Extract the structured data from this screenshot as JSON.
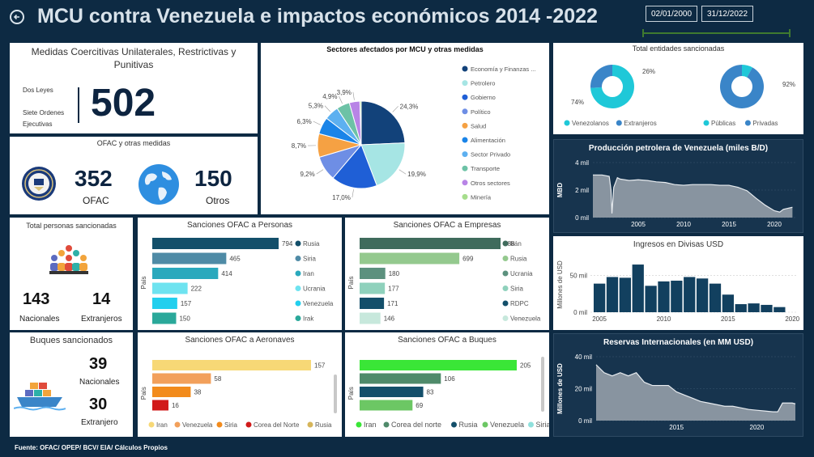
{
  "header": {
    "title": "MCU contra Venezuela e impactos económicos 2014 -2022",
    "date_start": "02/01/2000",
    "date_end": "31/12/2022"
  },
  "footer": "Fuente: OFAC/ OPEP/ BCV/ EIA/ Cálculos Propios",
  "mcu": {
    "title": "Medidas Coercitivas Unilaterales, Restrictivas y Punitivas",
    "line1": "Dos Leyes",
    "line2": "Siete Ordenes Ejecutivas",
    "total": "502"
  },
  "ofac_box": {
    "title": "OFAC y otras medidas",
    "ofac_value": "352",
    "ofac_label": "OFAC",
    "otros_value": "150",
    "otros_label": "Otros"
  },
  "personas": {
    "title": "Total personas sancionadas",
    "nacionales_value": "143",
    "nacionales_label": "Nacionales",
    "extranjeros_value": "14",
    "extranjeros_label": "Extranjeros"
  },
  "buques": {
    "title": "Buques sancionados",
    "nacionales_value": "39",
    "nacionales_label": "Nacionales",
    "extranjero_value": "30",
    "extranjero_label": "Extranjero"
  },
  "colors": {
    "background": "#0d2a43",
    "panel_dark": "#17344e",
    "area_fill": "#8894a0"
  },
  "chart_data": [
    {
      "id": "sectores",
      "type": "pie",
      "title": "Sectores afectados por MCU y otras medidas",
      "labels": [
        "Economía y Finanzas ...",
        "Petrolero",
        "Gobierno",
        "Político",
        "Salud",
        "Alimentación",
        "Sector Privado",
        "Transporte",
        "Otros sectores",
        "Minería"
      ],
      "values": [
        24.3,
        19.9,
        17.0,
        9.2,
        8.7,
        6.3,
        5.3,
        4.9,
        3.9,
        0.5
      ],
      "data_labels": [
        "24,3%",
        "19,9%",
        "17,0%",
        "9,2%",
        "8,7%",
        "6,3%",
        "5,3%",
        "4,9%",
        "3,9%",
        ""
      ],
      "colors": [
        "#12427a",
        "#a6e5e4",
        "#1f5fd6",
        "#6e8ee5",
        "#f5a143",
        "#1a84e8",
        "#5db0f0",
        "#6dc2a6",
        "#b884e6",
        "#a6dd8c"
      ]
    },
    {
      "id": "entidades",
      "type": "pie",
      "title": "Total entidades sancionadas",
      "groups": [
        {
          "labels": [
            "Venezolanos",
            "Extranjeros"
          ],
          "values": [
            74,
            26
          ],
          "data_labels": [
            "74%",
            "26%"
          ],
          "colors": [
            "#1fc8d8",
            "#3a85c8"
          ]
        },
        {
          "labels": [
            "Públicas",
            "Privadas"
          ],
          "values": [
            8,
            92
          ],
          "data_labels": [
            "",
            "92%"
          ],
          "colors": [
            "#1fc8d8",
            "#3a85c8"
          ]
        }
      ]
    },
    {
      "id": "produccion",
      "type": "area",
      "title": "Producción petrolera de Venezuela (miles B/D)",
      "ylabel": "MBD",
      "x": [
        2000,
        2001,
        2001.8,
        2002.0,
        2002.1,
        2002.3,
        2002.7,
        2003,
        2004,
        2005,
        2006,
        2007,
        2008,
        2009,
        2010,
        2011,
        2012,
        2013,
        2014,
        2015,
        2016,
        2017,
        2018,
        2019,
        2020,
        2020.6,
        2021,
        2022
      ],
      "values": [
        3.1,
        3.1,
        3.0,
        2.0,
        0.3,
        2.2,
        2.9,
        2.8,
        2.7,
        2.75,
        2.7,
        2.6,
        2.55,
        2.4,
        2.35,
        2.4,
        2.4,
        2.4,
        2.35,
        2.35,
        2.2,
        1.95,
        1.4,
        0.9,
        0.5,
        0.4,
        0.6,
        0.75
      ],
      "xlim": [
        2000,
        2022.5
      ],
      "ylim": [
        0,
        4
      ],
      "x_ticks": [
        2005,
        2010,
        2015,
        2020
      ],
      "y_ticks": [
        {
          "value": 0,
          "label": "0 mil"
        },
        {
          "value": 2,
          "label": "2 mil"
        },
        {
          "value": 4,
          "label": "4 mil"
        }
      ]
    },
    {
      "id": "ingresos",
      "type": "bar",
      "title": "Ingresos en Divisas USD",
      "ylabel": "Millones de USD",
      "x": [
        2005,
        2006,
        2007,
        2008,
        2009,
        2010,
        2011,
        2012,
        2013,
        2014,
        2015,
        2016,
        2017,
        2018,
        2019
      ],
      "values": [
        39,
        48,
        47,
        65,
        36,
        42,
        43,
        48,
        46,
        39,
        24,
        11,
        12,
        10,
        7
      ],
      "xlim": [
        2004.3,
        2020.3
      ],
      "ylim": [
        0,
        75
      ],
      "x_ticks": [
        2005,
        2010,
        2015,
        2020
      ],
      "y_ticks": [
        {
          "value": 0,
          "label": "0 mil"
        },
        {
          "value": 50,
          "label": "50 mil"
        }
      ]
    },
    {
      "id": "reservas",
      "type": "area",
      "title": "Reservas Internacionales (en MM USD)",
      "ylabel": "Millones de USD",
      "x": [
        2010,
        2010.5,
        2011,
        2011.5,
        2012,
        2012.5,
        2013,
        2013.5,
        2014,
        2014.5,
        2015,
        2015.5,
        2016,
        2016.5,
        2017,
        2017.5,
        2018,
        2018.5,
        2019,
        2019.5,
        2020,
        2020.5,
        2021,
        2021.3,
        2021.6,
        2022.2,
        2022.4
      ],
      "values": [
        35,
        30,
        28,
        30,
        28,
        30,
        24,
        22,
        22,
        22,
        18,
        16,
        14,
        12,
        11,
        10,
        9,
        9,
        8,
        7,
        6.5,
        6,
        5.5,
        5.5,
        11,
        11,
        10.5
      ],
      "xlim": [
        2010,
        2022.5
      ],
      "ylim": [
        0,
        40
      ],
      "x_ticks": [
        2015,
        2020
      ],
      "y_ticks": [
        {
          "value": 0,
          "label": "0 mil"
        },
        {
          "value": 20,
          "label": "20 mil"
        },
        {
          "value": 40,
          "label": "40 mil"
        }
      ]
    },
    {
      "id": "personas",
      "type": "bar",
      "title": "Sanciones OFAC a Personas",
      "ylabel": "País",
      "categories": [
        "Rusia",
        "Siria",
        "Iran",
        "Ucrania",
        "Venezuela",
        "Irak"
      ],
      "values": [
        794,
        465,
        414,
        222,
        157,
        150
      ],
      "colors": [
        "#134f6a",
        "#4f8ba6",
        "#2aa9bd",
        "#6ee3f0",
        "#22cfee",
        "#2aa89a"
      ]
    },
    {
      "id": "empresas",
      "type": "bar",
      "title": "Sanciones OFAC a Empresas",
      "ylabel": "País",
      "categories": [
        "Irán",
        "Rusia",
        "Ucrania",
        "Siria",
        "RDPC",
        "Venezuela"
      ],
      "values": [
        988,
        699,
        180,
        177,
        171,
        146
      ],
      "colors": [
        "#3f6b5c",
        "#94c98e",
        "#5c917e",
        "#8fd1bc",
        "#134f6a",
        "#c7e8dc"
      ]
    },
    {
      "id": "aeronaves",
      "type": "bar",
      "title": "Sanciones OFAC a Aeronaves",
      "ylabel": "País",
      "categories": [
        "Iran",
        "Venezuela",
        "Siria",
        "Corea del Norte",
        "Rusia"
      ],
      "values": [
        157,
        58,
        38,
        16,
        0
      ],
      "colors": [
        "#f7d876",
        "#f2a05b",
        "#f28b1c",
        "#d11a1a",
        "#d6b55a"
      ]
    },
    {
      "id": "buques",
      "type": "bar",
      "title": "Sanciones OFAC a Buques",
      "ylabel": "País",
      "categories": [
        "Iran",
        "Corea del norte",
        "Rusia",
        "Venezuela",
        "Siria"
      ],
      "values": [
        205,
        106,
        83,
        69,
        0
      ],
      "colors": [
        "#3ae637",
        "#4f8a6a",
        "#134f6a",
        "#6cc764",
        "#8fe0dc"
      ]
    }
  ]
}
